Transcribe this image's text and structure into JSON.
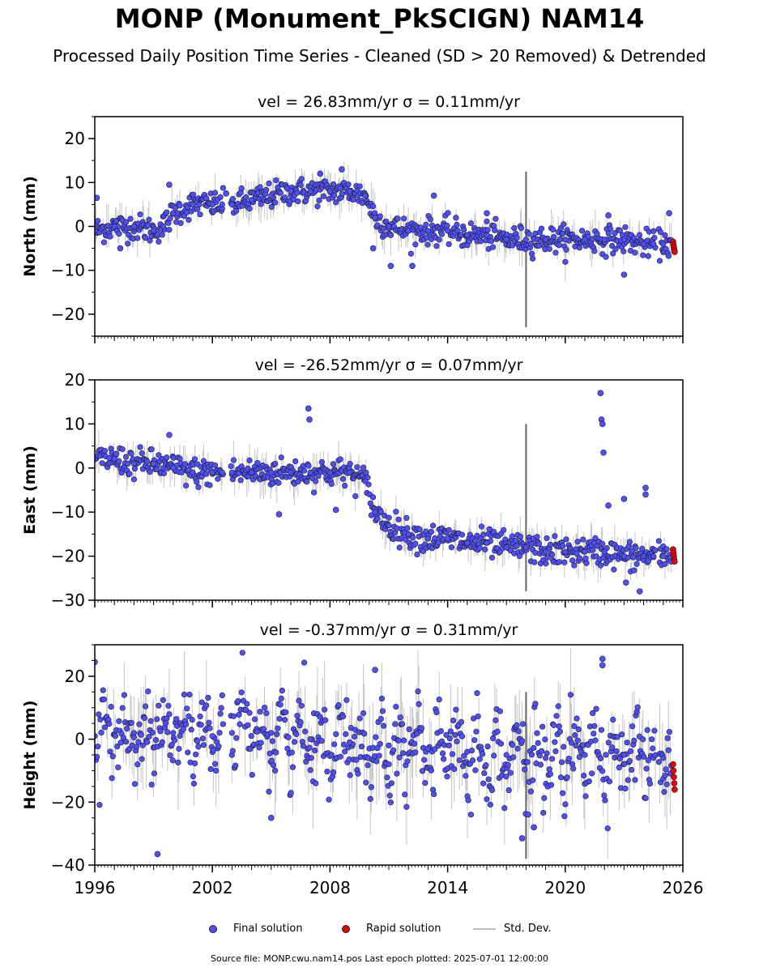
{
  "title": "MONP (Monument_PkSCIGN) NAM14",
  "subtitle": "Processed Daily Position Time Series - Cleaned (SD > 20 Removed) & Detrended",
  "legend": {
    "final": "Final solution",
    "rapid": "Rapid solution",
    "stddev": "Std. Dev."
  },
  "footer": "Source file: MONP.cwu.nam14.pos  Last epoch plotted: 2025-07-01 12:00:00",
  "colors": {
    "final": "#4f4fff",
    "rapid": "#e8000b",
    "stddev": "#bbbbbb",
    "marker_edge": "#202020"
  },
  "chart_data": [
    {
      "type": "scatter",
      "title": "vel = 26.83mm/yr   σ = 0.11mm/yr",
      "ylabel": "North (mm)",
      "xlim": [
        1996,
        2026
      ],
      "ylim": [
        -25,
        25
      ],
      "yticks": [
        -20,
        -10,
        0,
        10,
        20
      ],
      "xticks": [
        1996,
        2002,
        2008,
        2014,
        2020,
        2026
      ],
      "show_xticklabels": false,
      "series": [
        {
          "name": "Final solution",
          "x": [
            1996.0,
            1997.0,
            1998.0,
            1999.0,
            1999.5,
            2000.0,
            2001.0,
            2002.0,
            2002.5,
            2003.0,
            2004.0,
            2005.0,
            2006.0,
            2007.0,
            2008.0,
            2009.0,
            2009.8,
            2010.3,
            2011.0,
            2012.0,
            2013.0,
            2014.0,
            2015.0,
            2016.0,
            2017.0,
            2018.0,
            2019.0,
            2020.0,
            2021.0,
            2022.0,
            2023.0,
            2024.0,
            2024.5,
            2025.0
          ],
          "y": [
            -1,
            0,
            0,
            -1,
            0,
            3,
            5,
            5,
            5,
            5,
            6,
            7,
            8,
            8,
            8,
            8,
            7,
            2,
            0,
            -1,
            -1,
            -1,
            -2,
            -2,
            -3,
            -3,
            -3,
            -3,
            -3,
            -3,
            -3,
            -4,
            -4,
            -4
          ]
        },
        {
          "name": "Rapid solution",
          "x": [
            2025.5,
            2025.52,
            2025.54,
            2025.56,
            2025.58
          ],
          "y": [
            -3.5,
            -4.2,
            -4.8,
            -5.4,
            -5.8
          ]
        }
      ],
      "outliers": {
        "x": [
          1996.1,
          1997.3,
          1999.8,
          2002.7,
          2007.5,
          2008.6,
          2010.2,
          2011.1,
          2012.2,
          2013.3,
          2016.0,
          2022.2,
          2023.0,
          2025.3
        ],
        "y": [
          6.5,
          -5,
          9.5,
          7.5,
          12,
          13,
          -5,
          -9,
          -9,
          7,
          3,
          2.5,
          -11,
          3
        ]
      }
    },
    {
      "type": "scatter",
      "title": "vel = -26.52mm/yr   σ = 0.07mm/yr",
      "ylabel": "East (mm)",
      "xlim": [
        1996,
        2026
      ],
      "ylim": [
        -30,
        20
      ],
      "yticks": [
        -30,
        -20,
        -10,
        0,
        10,
        20
      ],
      "xticks": [
        1996,
        2002,
        2008,
        2014,
        2020,
        2026
      ],
      "show_xticklabels": false,
      "series": [
        {
          "name": "Final solution",
          "x": [
            1996.0,
            1997.0,
            1998.0,
            1999.0,
            2000.0,
            2001.0,
            2002.0,
            2002.5,
            2003.0,
            2004.0,
            2005.0,
            2006.0,
            2007.0,
            2008.0,
            2009.0,
            2009.8,
            2010.3,
            2011.0,
            2012.0,
            2013.0,
            2014.0,
            2015.0,
            2016.0,
            2017.0,
            2018.0,
            2019.0,
            2020.0,
            2021.0,
            2022.0,
            2023.0,
            2024.0,
            2024.5,
            2025.0
          ],
          "y": [
            2,
            2,
            1,
            1,
            0,
            -1,
            -1,
            -1,
            -1,
            -1,
            -1,
            -1,
            -1,
            -1,
            -1,
            -3,
            -10,
            -13,
            -15,
            -16,
            -16,
            -17,
            -17,
            -18,
            -18,
            -19,
            -19,
            -19,
            -19,
            -20,
            -20,
            -20,
            -20
          ]
        },
        {
          "name": "Rapid solution",
          "x": [
            2025.5,
            2025.52,
            2025.54,
            2025.56,
            2025.58
          ],
          "y": [
            -18.5,
            -19.2,
            -20,
            -20.8,
            -21.2
          ]
        }
      ],
      "outliers": {
        "x": [
          1999.8,
          2006.9,
          2006.95,
          2008.3,
          2005.4,
          2021.8,
          2021.85,
          2021.9,
          2021.95,
          2023.0,
          2024.1,
          2024.1,
          2022.2,
          2023.1,
          2023.8
        ],
        "y": [
          7.5,
          13.5,
          11,
          -9.5,
          -10.5,
          17,
          11,
          10,
          3.5,
          -7,
          -4.5,
          -6,
          -8.5,
          -26,
          -28
        ]
      }
    },
    {
      "type": "scatter",
      "title": "vel = -0.37mm/yr   σ = 0.31mm/yr",
      "ylabel": "Height (mm)",
      "xlim": [
        1996,
        2026
      ],
      "ylim": [
        -40,
        30
      ],
      "yticks": [
        -40,
        -20,
        0,
        20
      ],
      "xticks": [
        1996,
        2002,
        2008,
        2014,
        2020,
        2026
      ],
      "xticklabels": [
        "1996",
        "2002",
        "2008",
        "2014",
        "2020",
        "2026"
      ],
      "show_xticklabels": true,
      "series": [
        {
          "name": "Final solution",
          "x": [
            1996.0,
            1998.0,
            2000.0,
            2002.0,
            2003.0,
            2005.0,
            2007.0,
            2009.0,
            2011.0,
            2013.0,
            2015.0,
            2017.0,
            2019.0,
            2021.0,
            2023.0,
            2025.0
          ],
          "y": [
            1,
            2,
            2,
            1,
            2,
            2,
            0,
            -1,
            -2,
            -3,
            -4,
            -5,
            -6,
            -5,
            -5,
            -6
          ]
        },
        {
          "name": "Rapid solution",
          "x": [
            2025.5,
            2025.52,
            2025.54,
            2025.56,
            2025.58
          ],
          "y": [
            -8,
            -10,
            -12,
            -14,
            -16
          ]
        }
      ],
      "outliers": {
        "x": [
          1996.0,
          1999.2,
          2005.0,
          2010.3,
          2021.9,
          2021.9,
          2017.8,
          2018.4
        ],
        "y": [
          24.5,
          -36.5,
          -25,
          22,
          25.5,
          23.5,
          -31.5,
          -28
        ]
      }
    }
  ]
}
